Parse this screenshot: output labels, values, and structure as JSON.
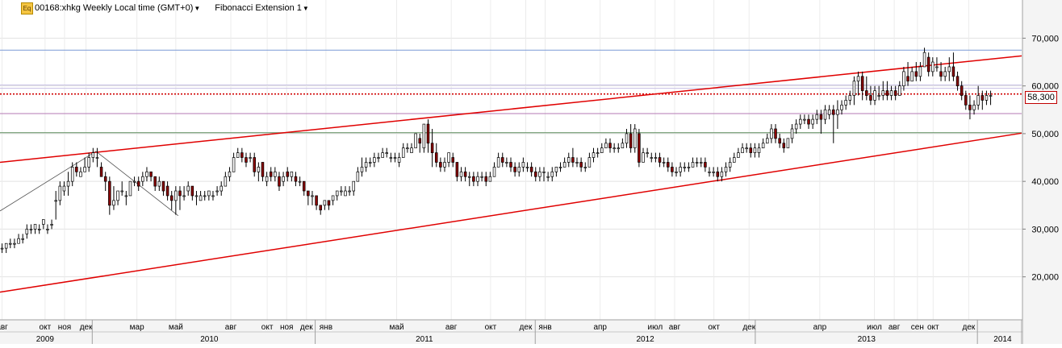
{
  "header": {
    "title": "00168:xhkg Weekly Local time (GMT+0)",
    "study": "Fibonacci Extension 1",
    "eq_icon_label": "Eq"
  },
  "last_price_label": "58,300",
  "chart_data": {
    "type": "candlestick",
    "title": "00168:xhkg Weekly Local time (GMT+0)",
    "ylim": [
      11000,
      78000
    ],
    "y_ticks": [
      {
        "value": 20000,
        "label": "20,000"
      },
      {
        "value": 30000,
        "label": "30,000"
      },
      {
        "value": 40000,
        "label": "40,000"
      },
      {
        "value": 50000,
        "label": "50,000"
      },
      {
        "value": 60000,
        "label": "60,000"
      },
      {
        "value": 70000,
        "label": "70,000"
      }
    ],
    "x_range_weeks": [
      0,
      247
    ],
    "month_ticks": [
      {
        "week": 0.5,
        "label": "авг"
      },
      {
        "week": 10.9,
        "label": "окт"
      },
      {
        "week": 15.6,
        "label": "ноя"
      },
      {
        "week": 20.8,
        "label": "дек"
      },
      {
        "week": 33.1,
        "label": "мар"
      },
      {
        "week": 42.5,
        "label": "май"
      },
      {
        "week": 55.8,
        "label": "авг"
      },
      {
        "week": 64.6,
        "label": "окт"
      },
      {
        "week": 69.3,
        "label": "ноя"
      },
      {
        "week": 74.1,
        "label": "дек"
      },
      {
        "week": 78.8,
        "label": "янв"
      },
      {
        "week": 95.9,
        "label": "май"
      },
      {
        "week": 109.1,
        "label": "авг"
      },
      {
        "week": 118.6,
        "label": "окт"
      },
      {
        "week": 127.1,
        "label": "дек"
      },
      {
        "week": 131.8,
        "label": "янв"
      },
      {
        "week": 145.1,
        "label": "апр"
      },
      {
        "week": 158.4,
        "label": "июл"
      },
      {
        "week": 163.1,
        "label": "авг"
      },
      {
        "week": 172.6,
        "label": "окт"
      },
      {
        "week": 181.1,
        "label": "дек"
      },
      {
        "week": 198.2,
        "label": "апр"
      },
      {
        "week": 211.4,
        "label": "июл"
      },
      {
        "week": 216.2,
        "label": "авг"
      },
      {
        "week": 221.8,
        "label": "сен"
      },
      {
        "week": 225.6,
        "label": "окт"
      },
      {
        "week": 234.2,
        "label": "дек"
      }
    ],
    "year_labels": [
      {
        "week": 10.9,
        "label": "2009"
      },
      {
        "week": 50.6,
        "label": "2010"
      },
      {
        "week": 102.6,
        "label": "2011"
      },
      {
        "week": 156.0,
        "label": "2012"
      },
      {
        "week": 209.5,
        "label": "2013"
      },
      {
        "week": 242.4,
        "label": "2014"
      }
    ],
    "year_separators": [
      22.3,
      76.2,
      129.4,
      182.6,
      236.3,
      247.0
    ],
    "horizontal_levels": [
      {
        "value": 67500,
        "color": "#7a9ad6",
        "style": "solid"
      },
      {
        "value": 60200,
        "color": "#c7bfe4",
        "style": "solid"
      },
      {
        "value": 59500,
        "color": "#c7bfe4",
        "style": "solid"
      },
      {
        "value": 58300,
        "color": "#d00000",
        "style": "dotted"
      },
      {
        "value": 54200,
        "color": "#b47ab4",
        "style": "solid"
      },
      {
        "value": 50200,
        "color": "#5a8a5a",
        "style": "solid"
      }
    ],
    "trend_lines": [
      {
        "x1": 0,
        "y1": 44000,
        "x2": 247,
        "y2": 66300,
        "color": "#e00000"
      },
      {
        "x1": 0,
        "y1": 16800,
        "x2": 247,
        "y2": 50100,
        "color": "#e00000"
      }
    ],
    "fib_extension_lines": [
      {
        "x1": 0,
        "y1": 33800,
        "x2": 23.2,
        "y2": 46300
      },
      {
        "x1": 23.2,
        "y1": 46300,
        "x2": 43.1,
        "y2": 32800
      }
    ],
    "candles_ohlc": [
      [
        26,
        27,
        25,
        26
      ],
      [
        26,
        27,
        25,
        27
      ],
      [
        27,
        28,
        26,
        27
      ],
      [
        27,
        28,
        26,
        27
      ],
      [
        27,
        29,
        27,
        28
      ],
      [
        28,
        29,
        27,
        28
      ],
      [
        29,
        31,
        28,
        30
      ],
      [
        30,
        31,
        29,
        30
      ],
      [
        30,
        31,
        29,
        31
      ],
      [
        30,
        31,
        29,
        30
      ],
      [
        31,
        32,
        30,
        32
      ],
      [
        30,
        31,
        29,
        30
      ],
      [
        31,
        32,
        30,
        31
      ],
      [
        36,
        38,
        32,
        36
      ],
      [
        36,
        40,
        35,
        39
      ],
      [
        38,
        40,
        37,
        39
      ],
      [
        39,
        42,
        37,
        40
      ],
      [
        40,
        44,
        39,
        43
      ],
      [
        43,
        44,
        41,
        42
      ],
      [
        41,
        43,
        41,
        42
      ],
      [
        42,
        45,
        42,
        43
      ],
      [
        43,
        46,
        42,
        45
      ],
      [
        45,
        47,
        44,
        46
      ],
      [
        45,
        47,
        43,
        45
      ],
      [
        43,
        44,
        41,
        41
      ],
      [
        41,
        42,
        38,
        40
      ],
      [
        40,
        41,
        33,
        35
      ],
      [
        35,
        39,
        34,
        36
      ],
      [
        36,
        38,
        35,
        38
      ],
      [
        38,
        40,
        37,
        38
      ],
      [
        37,
        38,
        35,
        37
      ],
      [
        37,
        40,
        37,
        40
      ],
      [
        40,
        41,
        39,
        40
      ],
      [
        40,
        41,
        38,
        39
      ],
      [
        40,
        42,
        39,
        41
      ],
      [
        41,
        43,
        40,
        42
      ],
      [
        42,
        42,
        40,
        41
      ],
      [
        41,
        41,
        38,
        39
      ],
      [
        39,
        41,
        38,
        40
      ],
      [
        40,
        40,
        37,
        38
      ],
      [
        39,
        40,
        36,
        37
      ],
      [
        37,
        38,
        34,
        36
      ],
      [
        36,
        39,
        33,
        38
      ],
      [
        38,
        39,
        34,
        37
      ],
      [
        37,
        39,
        36,
        37
      ],
      [
        38,
        40,
        37,
        39
      ],
      [
        39,
        39,
        36,
        37
      ],
      [
        37,
        38,
        35,
        37
      ],
      [
        36,
        38,
        36,
        37
      ],
      [
        37,
        38,
        36,
        37
      ],
      [
        37,
        38,
        36,
        38
      ],
      [
        37,
        38,
        36,
        37
      ],
      [
        38,
        39,
        37,
        38
      ],
      [
        38,
        40,
        37,
        39
      ],
      [
        39,
        42,
        39,
        41
      ],
      [
        41,
        43,
        40,
        42
      ],
      [
        42,
        46,
        42,
        45
      ],
      [
        45,
        47,
        45,
        46
      ],
      [
        46,
        47,
        44,
        45
      ],
      [
        45,
        46,
        43,
        44
      ],
      [
        45,
        46,
        44,
        45
      ],
      [
        45,
        46,
        41,
        42
      ],
      [
        42,
        44,
        40,
        43
      ],
      [
        44,
        44,
        40,
        41
      ],
      [
        40,
        42,
        39,
        41
      ],
      [
        42,
        43,
        40,
        41
      ],
      [
        41,
        43,
        40,
        42
      ],
      [
        41,
        42,
        38,
        39
      ],
      [
        40,
        42,
        39,
        41
      ],
      [
        42,
        43,
        40,
        41
      ],
      [
        41,
        42,
        40,
        42
      ],
      [
        41,
        42,
        39,
        40
      ],
      [
        40,
        41,
        39,
        40
      ],
      [
        40,
        40,
        37,
        38
      ],
      [
        38,
        38,
        35,
        37
      ],
      [
        37,
        38,
        35,
        37
      ],
      [
        37,
        37,
        34,
        35
      ],
      [
        35,
        35,
        33,
        34
      ],
      [
        35,
        36,
        34,
        36
      ],
      [
        36,
        36,
        34,
        35
      ],
      [
        36,
        37,
        35,
        37
      ],
      [
        37,
        38,
        36,
        38
      ],
      [
        38,
        39,
        37,
        38
      ],
      [
        37,
        39,
        37,
        38
      ],
      [
        38,
        39,
        37,
        38
      ],
      [
        38,
        40,
        37,
        40
      ],
      [
        40,
        43,
        40,
        42
      ],
      [
        42,
        45,
        41,
        43
      ],
      [
        43,
        45,
        42,
        44
      ],
      [
        44,
        45,
        43,
        44
      ],
      [
        44,
        46,
        43,
        45
      ],
      [
        45,
        46,
        44,
        45
      ],
      [
        45,
        47,
        45,
        46
      ],
      [
        46,
        47,
        45,
        46
      ],
      [
        45,
        46,
        44,
        45
      ],
      [
        45,
        46,
        44,
        45
      ],
      [
        44,
        46,
        43,
        45
      ],
      [
        45,
        48,
        45,
        47
      ],
      [
        47,
        48,
        46,
        47
      ],
      [
        46,
        48,
        46,
        47
      ],
      [
        47,
        50,
        47,
        50
      ],
      [
        49,
        50,
        46,
        48
      ],
      [
        47,
        52,
        46,
        52
      ],
      [
        52,
        53,
        46,
        48
      ],
      [
        48,
        51,
        43,
        46
      ],
      [
        46,
        48,
        43,
        44
      ],
      [
        44,
        45,
        42,
        43
      ],
      [
        43,
        45,
        42,
        44
      ],
      [
        44,
        46,
        43,
        46
      ],
      [
        45,
        46,
        43,
        44
      ],
      [
        44,
        44,
        40,
        41
      ],
      [
        41,
        43,
        40,
        42
      ],
      [
        42,
        43,
        40,
        41
      ],
      [
        41,
        42,
        39,
        41
      ],
      [
        41,
        42,
        39,
        40
      ],
      [
        40,
        42,
        39,
        41
      ],
      [
        41,
        42,
        40,
        41
      ],
      [
        41,
        42,
        39,
        40
      ],
      [
        40,
        42,
        40,
        41
      ],
      [
        41,
        44,
        41,
        43
      ],
      [
        43,
        46,
        43,
        45
      ],
      [
        45,
        46,
        43,
        44
      ],
      [
        44,
        45,
        43,
        44
      ],
      [
        44,
        45,
        42,
        43
      ],
      [
        43,
        44,
        41,
        42
      ],
      [
        42,
        44,
        41,
        43
      ],
      [
        43,
        45,
        42,
        44
      ],
      [
        43,
        44,
        42,
        43
      ],
      [
        43,
        44,
        41,
        42
      ],
      [
        42,
        43,
        40,
        41
      ],
      [
        41,
        43,
        40,
        42
      ],
      [
        42,
        43,
        40,
        42
      ],
      [
        41,
        42,
        40,
        41
      ],
      [
        41,
        43,
        40,
        42
      ],
      [
        42,
        43,
        41,
        43
      ],
      [
        43,
        44,
        42,
        43
      ],
      [
        43,
        45,
        43,
        44
      ],
      [
        44,
        46,
        43,
        45
      ],
      [
        45,
        47,
        43,
        44
      ],
      [
        44,
        45,
        43,
        44
      ],
      [
        44,
        45,
        42,
        43
      ],
      [
        43,
        44,
        42,
        43
      ],
      [
        43,
        46,
        43,
        45
      ],
      [
        45,
        47,
        44,
        46
      ],
      [
        46,
        47,
        45,
        46
      ],
      [
        46,
        48,
        46,
        47
      ],
      [
        47,
        49,
        47,
        48
      ],
      [
        48,
        49,
        46,
        47
      ],
      [
        47,
        48,
        46,
        47
      ],
      [
        47,
        48,
        46,
        47
      ],
      [
        47,
        49,
        47,
        48
      ],
      [
        48,
        51,
        47,
        50
      ],
      [
        50,
        52,
        46,
        47
      ],
      [
        47,
        52,
        46,
        51
      ],
      [
        50,
        51,
        43,
        44
      ],
      [
        44,
        47,
        44,
        46
      ],
      [
        46,
        47,
        45,
        46
      ],
      [
        45,
        46,
        44,
        45
      ],
      [
        45,
        46,
        44,
        45
      ],
      [
        45,
        46,
        43,
        44
      ],
      [
        44,
        45,
        43,
        44
      ],
      [
        44,
        45,
        42,
        43
      ],
      [
        43,
        44,
        41,
        42
      ],
      [
        42,
        43,
        41,
        42
      ],
      [
        42,
        44,
        41,
        43
      ],
      [
        43,
        44,
        42,
        43
      ],
      [
        43,
        44,
        42,
        43
      ],
      [
        43,
        45,
        43,
        44
      ],
      [
        44,
        45,
        43,
        44
      ],
      [
        44,
        45,
        43,
        44
      ],
      [
        44,
        45,
        42,
        43
      ],
      [
        42,
        43,
        41,
        42
      ],
      [
        42,
        43,
        41,
        42
      ],
      [
        42,
        43,
        40,
        41
      ],
      [
        41,
        43,
        40,
        42
      ],
      [
        42,
        44,
        41,
        43
      ],
      [
        43,
        45,
        42,
        44
      ],
      [
        44,
        46,
        44,
        45
      ],
      [
        45,
        47,
        45,
        46
      ],
      [
        46,
        48,
        46,
        47
      ],
      [
        47,
        48,
        46,
        47
      ],
      [
        47,
        48,
        45,
        46
      ],
      [
        46,
        48,
        45,
        47
      ],
      [
        46,
        48,
        45,
        47
      ],
      [
        47,
        49,
        47,
        48
      ],
      [
        48,
        50,
        48,
        49
      ],
      [
        49,
        52,
        48,
        51
      ],
      [
        51,
        52,
        48,
        49
      ],
      [
        49,
        50,
        47,
        48
      ],
      [
        48,
        49,
        46,
        47
      ],
      [
        47,
        49,
        47,
        49
      ],
      [
        49,
        52,
        48,
        51
      ],
      [
        51,
        53,
        50,
        52
      ],
      [
        52,
        54,
        51,
        53
      ],
      [
        53,
        54,
        52,
        53
      ],
      [
        53,
        54,
        51,
        52
      ],
      [
        52,
        54,
        51,
        53
      ],
      [
        53,
        55,
        52,
        54
      ],
      [
        54,
        55,
        50,
        53
      ],
      [
        53,
        56,
        52,
        55
      ],
      [
        54,
        56,
        53,
        55
      ],
      [
        55,
        56,
        48,
        54
      ],
      [
        54,
        57,
        51,
        55
      ],
      [
        55,
        57,
        54,
        56
      ],
      [
        56,
        58,
        55,
        57
      ],
      [
        57,
        59,
        56,
        58
      ],
      [
        58,
        62,
        56,
        61
      ],
      [
        61,
        63,
        58,
        62
      ],
      [
        62,
        63,
        57,
        59
      ],
      [
        59,
        62,
        57,
        58
      ],
      [
        58,
        60,
        56,
        57
      ],
      [
        57,
        60,
        56,
        59
      ],
      [
        58,
        60,
        57,
        58
      ],
      [
        58,
        61,
        57,
        59
      ],
      [
        59,
        61,
        57,
        58
      ],
      [
        58,
        60,
        57,
        59
      ],
      [
        59,
        60,
        57,
        58
      ],
      [
        58,
        61,
        58,
        60
      ],
      [
        60,
        64,
        59,
        63
      ],
      [
        62,
        65,
        60,
        61
      ],
      [
        61,
        64,
        61,
        63
      ],
      [
        63,
        65,
        61,
        62
      ],
      [
        62,
        65,
        61,
        64
      ],
      [
        64,
        68,
        64,
        67
      ],
      [
        66,
        67,
        62,
        63
      ],
      [
        63,
        66,
        62,
        65
      ],
      [
        64,
        66,
        63,
        64
      ],
      [
        63,
        65,
        61,
        62
      ],
      [
        62,
        64,
        61,
        63
      ],
      [
        63,
        66,
        61,
        64
      ],
      [
        64,
        67,
        61,
        62
      ],
      [
        62,
        63,
        59,
        60
      ],
      [
        60,
        61,
        57,
        58
      ],
      [
        58,
        59,
        55,
        56
      ],
      [
        56,
        58,
        53,
        55
      ],
      [
        55,
        57,
        54,
        56
      ],
      [
        56,
        60,
        55,
        58
      ],
      [
        58,
        59,
        55,
        57
      ],
      [
        57,
        59,
        56,
        58
      ],
      [
        58,
        59,
        56,
        58
      ]
    ],
    "last_price": 58300
  }
}
